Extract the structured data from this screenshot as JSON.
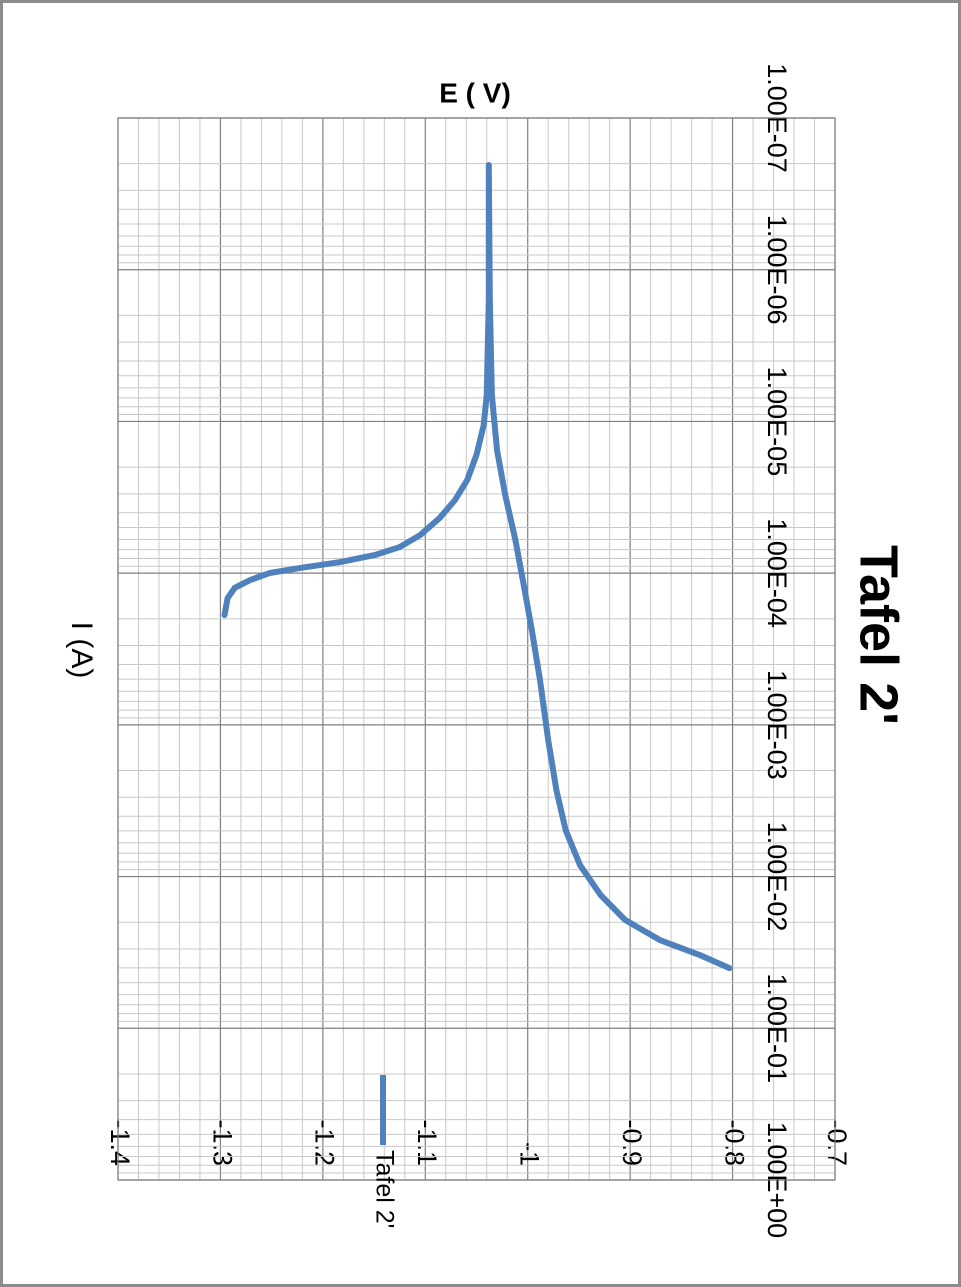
{
  "chart_data": {
    "type": "line",
    "title": "Tafel 2'",
    "x_label": "I (A)",
    "y_label": "E ( V)",
    "xscale": "log",
    "xlim": [
      1e-07,
      1
    ],
    "xticks": [
      {
        "value": 1e-07,
        "label": "1.00E-07"
      },
      {
        "value": 1e-06,
        "label": "1.00E-06"
      },
      {
        "value": 1e-05,
        "label": "1.00E-05"
      },
      {
        "value": 0.0001,
        "label": "1.00E-04"
      },
      {
        "value": 0.001,
        "label": "1.00E-03"
      },
      {
        "value": 0.01,
        "label": "1.00E-02"
      },
      {
        "value": 0.1,
        "label": "1.00E-01"
      },
      {
        "value": 1,
        "label": "1.00E+00"
      }
    ],
    "ylim": [
      -1.4,
      -0.7
    ],
    "yticks": [
      -1.4,
      -1.3,
      -1.2,
      -1.1,
      -1,
      -0.9,
      -0.8,
      -0.7
    ],
    "grid": true,
    "legend": "inside",
    "x": [
      0.000189,
      0.000146,
      0.000125,
      0.000111,
      9.98e-05,
      9.24e-05,
      8.45e-05,
      7.59e-05,
      6.73e-05,
      5.61e-05,
      4.33e-05,
      3.3e-05,
      2.43e-05,
      1.66e-05,
      1.06e-05,
      6.7e-06,
      1.58e-06,
      2.04e-07,
      1.58e-06,
      6.7e-06,
      1.54e-05,
      3.05e-05,
      6.05e-05,
      0.000129,
      0.000237,
      0.000506,
      0.00126,
      0.00269,
      0.00493,
      0.00839,
      0.0132,
      0.0193,
      0.0262,
      0.0329,
      0.0401
    ],
    "series": [
      {
        "name": "Tafel 2'",
        "color": "#4f81bd",
        "values": [
          -1.296,
          -1.293,
          -1.286,
          -1.271,
          -1.252,
          -1.222,
          -1.183,
          -1.149,
          -1.125,
          -1.105,
          -1.086,
          -1.071,
          -1.059,
          -1.05,
          -1.043,
          -1.04,
          -1.038,
          -1.038,
          -1.037,
          -1.035,
          -1.03,
          -1.022,
          -1.012,
          -1.003,
          -0.996,
          -0.988,
          -0.98,
          -0.972,
          -0.963,
          -0.949,
          -0.929,
          -0.905,
          -0.871,
          -0.832,
          -0.803
        ]
      }
    ]
  }
}
